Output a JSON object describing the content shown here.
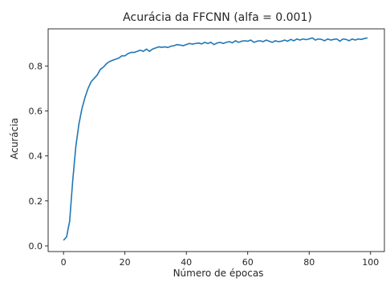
{
  "chart_data": {
    "type": "line",
    "title": "Acurácia da FFCNN (alfa = 0.001)",
    "xlabel": "Número de épocas",
    "ylabel": "Acurácia",
    "xlim": [
      -5,
      104.5
    ],
    "ylim": [
      -0.025,
      0.965
    ],
    "grid": false,
    "xticks": [
      0,
      20,
      40,
      60,
      80,
      100
    ],
    "yticks": [
      0.0,
      0.2,
      0.4,
      0.6,
      0.8
    ],
    "ytick_labels": [
      "0.0",
      "0.2",
      "0.4",
      "0.6",
      "0.8"
    ],
    "line_color": "#1f77b4",
    "series": [
      {
        "x": [
          0,
          1,
          2,
          3,
          4,
          5,
          6,
          7,
          8,
          9,
          10,
          11,
          12,
          13,
          14,
          15,
          16,
          17,
          18,
          19,
          20,
          21,
          22,
          23,
          24,
          25,
          26,
          27,
          28,
          29,
          30,
          31,
          32,
          33,
          34,
          35,
          36,
          37,
          38,
          39,
          40,
          41,
          42,
          43,
          44,
          45,
          46,
          47,
          48,
          49,
          50,
          51,
          52,
          53,
          54,
          55,
          56,
          57,
          58,
          59,
          60,
          61,
          62,
          63,
          64,
          65,
          66,
          67,
          68,
          69,
          70,
          71,
          72,
          73,
          74,
          75,
          76,
          77,
          78,
          79,
          80,
          81,
          82,
          83,
          84,
          85,
          86,
          87,
          88,
          89,
          90,
          91,
          92,
          93,
          94,
          95,
          96,
          97,
          98,
          99
        ],
        "values": [
          0.025,
          0.04,
          0.11,
          0.29,
          0.44,
          0.54,
          0.61,
          0.66,
          0.7,
          0.73,
          0.745,
          0.76,
          0.785,
          0.795,
          0.81,
          0.82,
          0.825,
          0.83,
          0.835,
          0.845,
          0.845,
          0.855,
          0.86,
          0.86,
          0.865,
          0.87,
          0.865,
          0.875,
          0.865,
          0.875,
          0.88,
          0.885,
          0.883,
          0.885,
          0.882,
          0.888,
          0.89,
          0.895,
          0.893,
          0.89,
          0.895,
          0.9,
          0.897,
          0.9,
          0.902,
          0.898,
          0.905,
          0.9,
          0.905,
          0.895,
          0.902,
          0.905,
          0.9,
          0.905,
          0.908,
          0.903,
          0.912,
          0.905,
          0.91,
          0.912,
          0.91,
          0.915,
          0.905,
          0.91,
          0.912,
          0.908,
          0.915,
          0.91,
          0.905,
          0.912,
          0.908,
          0.91,
          0.915,
          0.91,
          0.918,
          0.912,
          0.92,
          0.915,
          0.92,
          0.917,
          0.92,
          0.925,
          0.915,
          0.92,
          0.918,
          0.912,
          0.92,
          0.915,
          0.918,
          0.92,
          0.91,
          0.92,
          0.918,
          0.912,
          0.92,
          0.915,
          0.92,
          0.918,
          0.922,
          0.925
        ]
      }
    ]
  }
}
